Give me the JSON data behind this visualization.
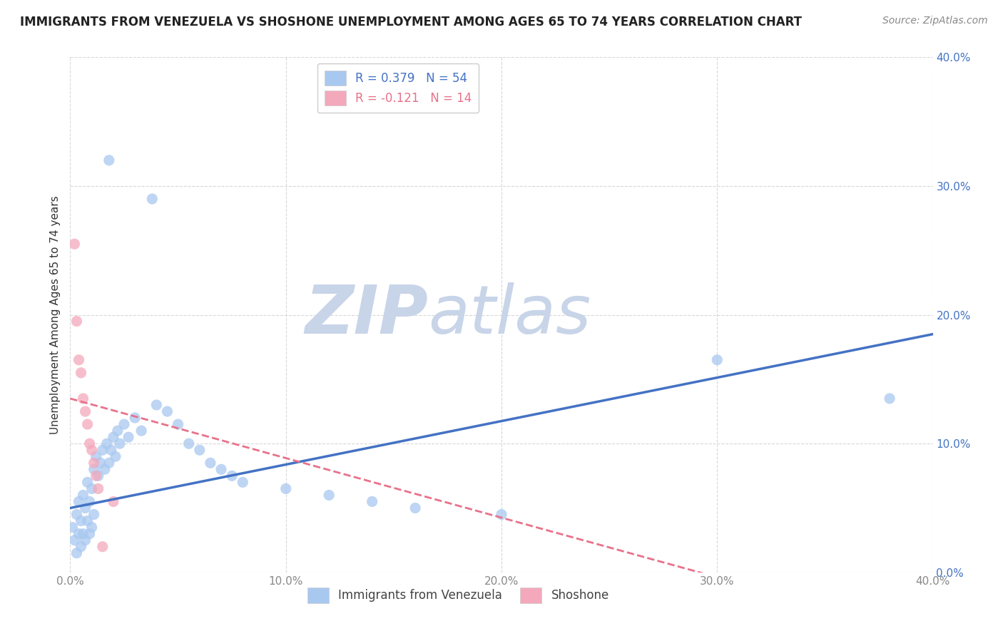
{
  "title": "IMMIGRANTS FROM VENEZUELA VS SHOSHONE UNEMPLOYMENT AMONG AGES 65 TO 74 YEARS CORRELATION CHART",
  "source": "Source: ZipAtlas.com",
  "ylabel": "Unemployment Among Ages 65 to 74 years",
  "xlim": [
    0,
    0.4
  ],
  "ylim": [
    0,
    0.4
  ],
  "xticks": [
    0.0,
    0.1,
    0.2,
    0.3,
    0.4
  ],
  "yticks": [
    0.0,
    0.1,
    0.2,
    0.3,
    0.4
  ],
  "legend1_label": "Immigrants from Venezuela",
  "legend2_label": "Shoshone",
  "R1": 0.379,
  "N1": 54,
  "R2": -0.121,
  "N2": 14,
  "blue_color": "#a8c8f0",
  "pink_color": "#f4a8bc",
  "blue_line_color": "#4472c4",
  "pink_line_color": "#e8728a",
  "watermark_zip_color": "#c8d4e8",
  "watermark_atlas_color": "#c8d4e8",
  "background_color": "#ffffff",
  "grid_color": "#d8d8d8",
  "tick_color": "#4472c4",
  "blue_scatter": [
    [
      0.001,
      0.035
    ],
    [
      0.002,
      0.025
    ],
    [
      0.003,
      0.045
    ],
    [
      0.003,
      0.015
    ],
    [
      0.004,
      0.055
    ],
    [
      0.004,
      0.03
    ],
    [
      0.005,
      0.04
    ],
    [
      0.005,
      0.02
    ],
    [
      0.006,
      0.06
    ],
    [
      0.006,
      0.03
    ],
    [
      0.007,
      0.05
    ],
    [
      0.007,
      0.025
    ],
    [
      0.008,
      0.07
    ],
    [
      0.008,
      0.04
    ],
    [
      0.009,
      0.055
    ],
    [
      0.009,
      0.03
    ],
    [
      0.01,
      0.065
    ],
    [
      0.01,
      0.035
    ],
    [
      0.011,
      0.08
    ],
    [
      0.011,
      0.045
    ],
    [
      0.012,
      0.09
    ],
    [
      0.013,
      0.075
    ],
    [
      0.014,
      0.085
    ],
    [
      0.015,
      0.095
    ],
    [
      0.016,
      0.08
    ],
    [
      0.017,
      0.1
    ],
    [
      0.018,
      0.085
    ],
    [
      0.019,
      0.095
    ],
    [
      0.02,
      0.105
    ],
    [
      0.021,
      0.09
    ],
    [
      0.022,
      0.11
    ],
    [
      0.023,
      0.1
    ],
    [
      0.025,
      0.115
    ],
    [
      0.027,
      0.105
    ],
    [
      0.03,
      0.12
    ],
    [
      0.033,
      0.11
    ],
    [
      0.018,
      0.32
    ],
    [
      0.038,
      0.29
    ],
    [
      0.04,
      0.13
    ],
    [
      0.045,
      0.125
    ],
    [
      0.05,
      0.115
    ],
    [
      0.055,
      0.1
    ],
    [
      0.06,
      0.095
    ],
    [
      0.065,
      0.085
    ],
    [
      0.07,
      0.08
    ],
    [
      0.075,
      0.075
    ],
    [
      0.08,
      0.07
    ],
    [
      0.1,
      0.065
    ],
    [
      0.12,
      0.06
    ],
    [
      0.14,
      0.055
    ],
    [
      0.16,
      0.05
    ],
    [
      0.2,
      0.045
    ],
    [
      0.3,
      0.165
    ],
    [
      0.38,
      0.135
    ]
  ],
  "pink_scatter": [
    [
      0.002,
      0.255
    ],
    [
      0.003,
      0.195
    ],
    [
      0.004,
      0.165
    ],
    [
      0.005,
      0.155
    ],
    [
      0.006,
      0.135
    ],
    [
      0.007,
      0.125
    ],
    [
      0.008,
      0.115
    ],
    [
      0.009,
      0.1
    ],
    [
      0.01,
      0.095
    ],
    [
      0.011,
      0.085
    ],
    [
      0.012,
      0.075
    ],
    [
      0.013,
      0.065
    ],
    [
      0.015,
      0.02
    ],
    [
      0.02,
      0.055
    ]
  ],
  "blue_trend": [
    0.0,
    0.05,
    0.4,
    0.185
  ],
  "pink_trend": [
    0.0,
    0.135,
    0.4,
    -0.05
  ],
  "title_fontsize": 12,
  "source_fontsize": 10,
  "axis_label_fontsize": 11,
  "tick_fontsize": 11,
  "legend_fontsize": 12
}
